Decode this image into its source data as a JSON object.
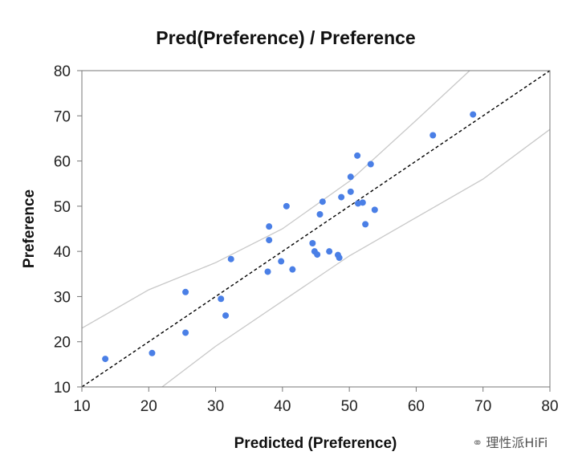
{
  "chart_data": {
    "type": "scatter",
    "title": "Pred(Preference) / Preference",
    "xlabel": "Predicted (Preference)",
    "ylabel": "Preference",
    "xlim": [
      10,
      80
    ],
    "ylim": [
      10,
      80
    ],
    "xticks": [
      "10",
      "20",
      "30",
      "40",
      "50",
      "60",
      "70",
      "80"
    ],
    "yticks": [
      "10",
      "20",
      "30",
      "40",
      "50",
      "60",
      "70",
      "80"
    ],
    "grid": false,
    "identity_line": {
      "style": "dashed",
      "color": "#000000",
      "from": [
        10,
        10
      ],
      "to": [
        80,
        80
      ]
    },
    "band_lines": {
      "color": "#c8c8c8",
      "upper": [
        [
          10,
          23
        ],
        [
          20,
          31.5
        ],
        [
          30,
          37.5
        ],
        [
          40,
          45
        ],
        [
          50,
          55.5
        ],
        [
          60,
          69
        ],
        [
          68,
          80
        ]
      ],
      "lower": [
        [
          22,
          10
        ],
        [
          30,
          19
        ],
        [
          40,
          29
        ],
        [
          50,
          39
        ],
        [
          60,
          47.5
        ],
        [
          70,
          56
        ],
        [
          80,
          67
        ]
      ]
    },
    "point_color": "#4a7fe6",
    "points": [
      {
        "x": 13.5,
        "y": 16.2
      },
      {
        "x": 20.5,
        "y": 17.5
      },
      {
        "x": 25.5,
        "y": 31.0
      },
      {
        "x": 25.5,
        "y": 22.0
      },
      {
        "x": 30.8,
        "y": 29.5
      },
      {
        "x": 31.5,
        "y": 25.8
      },
      {
        "x": 32.3,
        "y": 38.3
      },
      {
        "x": 37.8,
        "y": 35.5
      },
      {
        "x": 38.0,
        "y": 45.5
      },
      {
        "x": 38.0,
        "y": 42.5
      },
      {
        "x": 39.8,
        "y": 37.8
      },
      {
        "x": 40.6,
        "y": 50.0
      },
      {
        "x": 41.5,
        "y": 36.0
      },
      {
        "x": 44.5,
        "y": 41.8
      },
      {
        "x": 44.8,
        "y": 40.0
      },
      {
        "x": 45.2,
        "y": 39.3
      },
      {
        "x": 45.6,
        "y": 48.2
      },
      {
        "x": 46.0,
        "y": 51.0
      },
      {
        "x": 47.0,
        "y": 40.0
      },
      {
        "x": 48.3,
        "y": 39.2
      },
      {
        "x": 48.5,
        "y": 38.6
      },
      {
        "x": 48.8,
        "y": 52.0
      },
      {
        "x": 50.2,
        "y": 56.5
      },
      {
        "x": 50.2,
        "y": 53.2
      },
      {
        "x": 51.2,
        "y": 61.2
      },
      {
        "x": 51.3,
        "y": 50.6
      },
      {
        "x": 52.0,
        "y": 50.8
      },
      {
        "x": 52.4,
        "y": 46.0
      },
      {
        "x": 53.2,
        "y": 59.3
      },
      {
        "x": 53.8,
        "y": 49.2
      },
      {
        "x": 62.5,
        "y": 65.7
      },
      {
        "x": 68.5,
        "y": 70.3
      }
    ]
  },
  "watermark": {
    "icon": "wechat-icon",
    "text": "理性派HiFi"
  }
}
